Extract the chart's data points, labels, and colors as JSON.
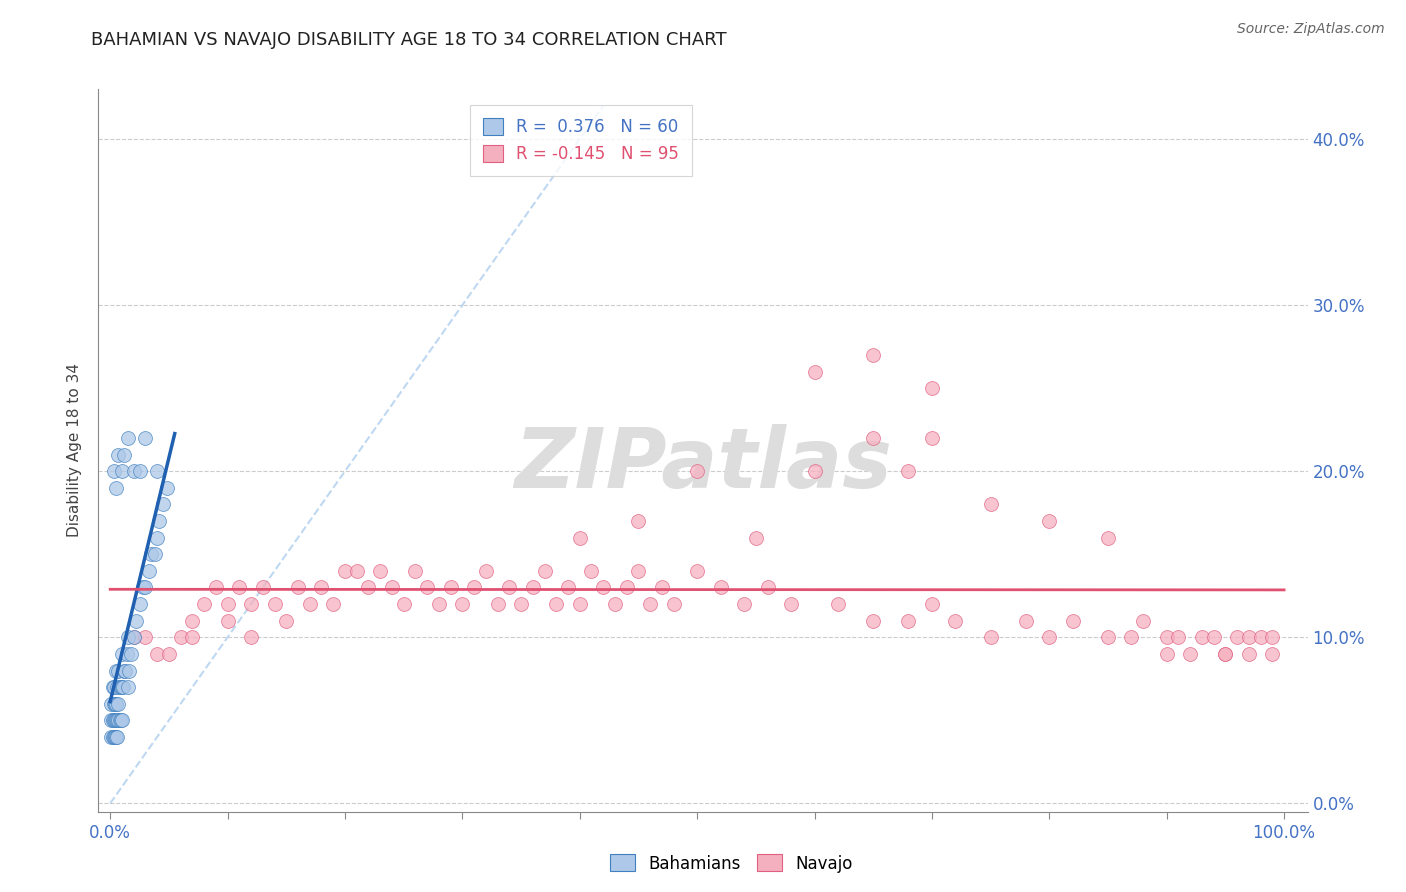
{
  "title": "BAHAMIAN VS NAVAJO DISABILITY AGE 18 TO 34 CORRELATION CHART",
  "source": "Source: ZipAtlas.com",
  "ylabel": "Disability Age 18 to 34",
  "xlim": [
    -0.01,
    1.02
  ],
  "ylim": [
    -0.005,
    0.43
  ],
  "xticks": [
    0.0,
    0.1,
    0.2,
    0.3,
    0.4,
    0.5,
    0.6,
    0.7,
    0.8,
    0.9,
    1.0
  ],
  "xticklabels_sparse": {
    "0.0": "0.0%",
    "1.0": "100.0%"
  },
  "yticks": [
    0.0,
    0.1,
    0.2,
    0.3,
    0.4
  ],
  "yticklabels_right": [
    "0.0%",
    "10.0%",
    "20.0%",
    "30.0%",
    "40.0%"
  ],
  "grid_color": "#cccccc",
  "blue_fill": "#adc8e8",
  "pink_fill": "#f5b0c0",
  "blue_edge": "#4080c0",
  "pink_edge": "#e06080",
  "blue_reg_color": "#2060b0",
  "pink_reg_color": "#e05070",
  "diag_color": "#b8d4f0",
  "r_blue": 0.376,
  "n_blue": 60,
  "r_pink": -0.145,
  "n_pink": 95,
  "watermark_text": "ZIPatlas",
  "legend_label_blue": "R =  0.376   N = 60",
  "legend_label_pink": "R = -0.145   N = 95",
  "blue_x": [
    0.001,
    0.001,
    0.001,
    0.002,
    0.002,
    0.002,
    0.003,
    0.003,
    0.003,
    0.003,
    0.004,
    0.004,
    0.004,
    0.005,
    0.005,
    0.005,
    0.005,
    0.006,
    0.006,
    0.006,
    0.007,
    0.007,
    0.007,
    0.008,
    0.008,
    0.009,
    0.009,
    0.01,
    0.01,
    0.01,
    0.011,
    0.012,
    0.013,
    0.014,
    0.015,
    0.015,
    0.016,
    0.018,
    0.02,
    0.022,
    0.025,
    0.028,
    0.03,
    0.033,
    0.035,
    0.038,
    0.04,
    0.042,
    0.045,
    0.048,
    0.005,
    0.003,
    0.007,
    0.01,
    0.012,
    0.015,
    0.02,
    0.025,
    0.03,
    0.04
  ],
  "blue_y": [
    0.04,
    0.05,
    0.06,
    0.04,
    0.05,
    0.07,
    0.04,
    0.05,
    0.06,
    0.07,
    0.04,
    0.05,
    0.06,
    0.04,
    0.05,
    0.06,
    0.08,
    0.04,
    0.05,
    0.07,
    0.05,
    0.06,
    0.08,
    0.05,
    0.07,
    0.05,
    0.07,
    0.05,
    0.07,
    0.09,
    0.07,
    0.08,
    0.08,
    0.09,
    0.1,
    0.07,
    0.08,
    0.09,
    0.1,
    0.11,
    0.12,
    0.13,
    0.13,
    0.14,
    0.15,
    0.15,
    0.16,
    0.17,
    0.18,
    0.19,
    0.19,
    0.2,
    0.21,
    0.2,
    0.21,
    0.22,
    0.2,
    0.2,
    0.22,
    0.2
  ],
  "pink_x": [
    0.02,
    0.03,
    0.04,
    0.05,
    0.06,
    0.07,
    0.07,
    0.08,
    0.09,
    0.1,
    0.1,
    0.11,
    0.12,
    0.12,
    0.13,
    0.14,
    0.15,
    0.16,
    0.17,
    0.18,
    0.19,
    0.2,
    0.21,
    0.22,
    0.23,
    0.24,
    0.25,
    0.26,
    0.27,
    0.28,
    0.29,
    0.3,
    0.31,
    0.32,
    0.33,
    0.34,
    0.35,
    0.36,
    0.37,
    0.38,
    0.39,
    0.4,
    0.41,
    0.42,
    0.43,
    0.44,
    0.45,
    0.46,
    0.47,
    0.48,
    0.5,
    0.52,
    0.54,
    0.56,
    0.58,
    0.6,
    0.62,
    0.65,
    0.68,
    0.7,
    0.72,
    0.75,
    0.78,
    0.8,
    0.82,
    0.85,
    0.87,
    0.88,
    0.9,
    0.91,
    0.92,
    0.93,
    0.94,
    0.95,
    0.96,
    0.97,
    0.97,
    0.98,
    0.99,
    0.99,
    0.6,
    0.65,
    0.7,
    0.75,
    0.8,
    0.85,
    0.9,
    0.95,
    0.65,
    0.7,
    0.55,
    0.5,
    0.45,
    0.4,
    0.68
  ],
  "pink_y": [
    0.1,
    0.1,
    0.09,
    0.09,
    0.1,
    0.11,
    0.1,
    0.12,
    0.13,
    0.12,
    0.11,
    0.13,
    0.12,
    0.1,
    0.13,
    0.12,
    0.11,
    0.13,
    0.12,
    0.13,
    0.12,
    0.14,
    0.14,
    0.13,
    0.14,
    0.13,
    0.12,
    0.14,
    0.13,
    0.12,
    0.13,
    0.12,
    0.13,
    0.14,
    0.12,
    0.13,
    0.12,
    0.13,
    0.14,
    0.12,
    0.13,
    0.12,
    0.14,
    0.13,
    0.12,
    0.13,
    0.14,
    0.12,
    0.13,
    0.12,
    0.14,
    0.13,
    0.12,
    0.13,
    0.12,
    0.2,
    0.12,
    0.11,
    0.11,
    0.12,
    0.11,
    0.1,
    0.11,
    0.1,
    0.11,
    0.1,
    0.1,
    0.11,
    0.1,
    0.1,
    0.09,
    0.1,
    0.1,
    0.09,
    0.1,
    0.1,
    0.09,
    0.1,
    0.09,
    0.1,
    0.26,
    0.27,
    0.25,
    0.18,
    0.17,
    0.16,
    0.09,
    0.09,
    0.22,
    0.22,
    0.16,
    0.2,
    0.17,
    0.16,
    0.2
  ]
}
